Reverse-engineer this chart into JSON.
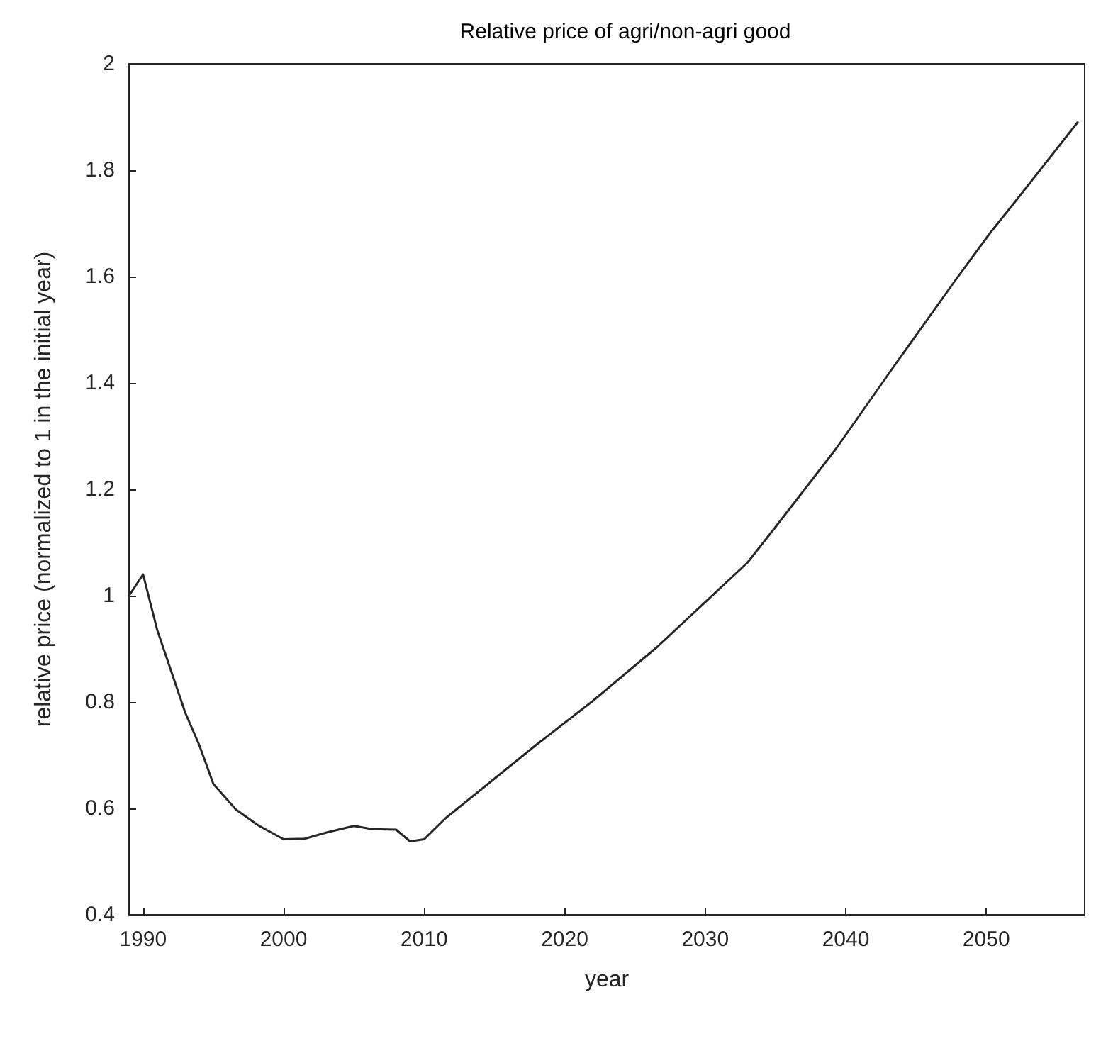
{
  "chart_data": {
    "type": "line",
    "title": "Relative price of agri/non-agri good",
    "xlabel": "year",
    "ylabel": "relative price (normalized to 1 in the initial year)",
    "x": [
      1989,
      1990,
      1991,
      1992,
      1993,
      1994,
      1995,
      1996.6,
      1998.2,
      2000,
      2001.5,
      2003.1,
      2005,
      2006.3,
      2008,
      2009,
      2010,
      2011.5,
      2018,
      2022,
      2026.6,
      2033,
      2035,
      2039.3,
      2043.5,
      2047.8,
      2050.3,
      2052,
      2056.5
    ],
    "series": [
      {
        "color": "#262626",
        "values": [
          1.0,
          1.04,
          0.936,
          0.858,
          0.78,
          0.719,
          0.646,
          0.598,
          0.568,
          0.542,
          0.543,
          0.555,
          0.567,
          0.561,
          0.56,
          0.538,
          0.542,
          0.581,
          0.72,
          0.802,
          0.904,
          1.062,
          1.129,
          1.276,
          1.434,
          1.593,
          1.683,
          1.739,
          1.89
        ]
      }
    ],
    "xlim": [
      1989,
      2057
    ],
    "xticks": [
      1990,
      2000,
      2010,
      2020,
      2030,
      2040,
      2050
    ],
    "ylim": [
      0.4,
      2
    ],
    "yticks": [
      0.4,
      0.6,
      0.8,
      1,
      1.2,
      1.4,
      1.6,
      1.8,
      2
    ],
    "grid": false,
    "marker": "none",
    "line_style": "solid"
  }
}
